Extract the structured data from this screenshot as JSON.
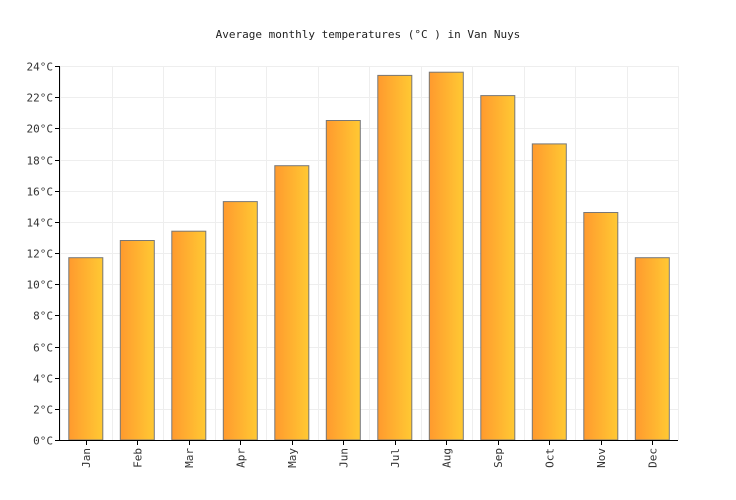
{
  "chart_data": {
    "type": "bar",
    "title": "Average monthly temperatures (°C ) in Van Nuys",
    "categories": [
      "Jan",
      "Feb",
      "Mar",
      "Apr",
      "May",
      "Jun",
      "Jul",
      "Aug",
      "Sep",
      "Oct",
      "Nov",
      "Dec"
    ],
    "values": [
      11.7,
      12.8,
      13.4,
      15.3,
      17.6,
      20.5,
      23.4,
      23.6,
      22.1,
      19.0,
      14.6,
      11.7
    ],
    "ylim": [
      0,
      24
    ],
    "y_ticks": [
      "0°C",
      "2°C",
      "4°C",
      "6°C",
      "8°C",
      "10°C",
      "12°C",
      "14°C",
      "16°C",
      "18°C",
      "20°C",
      "22°C",
      "24°C"
    ],
    "grid": true,
    "colors": {
      "bar_start": "#ff9a2e",
      "bar_end": "#ffc933"
    }
  }
}
